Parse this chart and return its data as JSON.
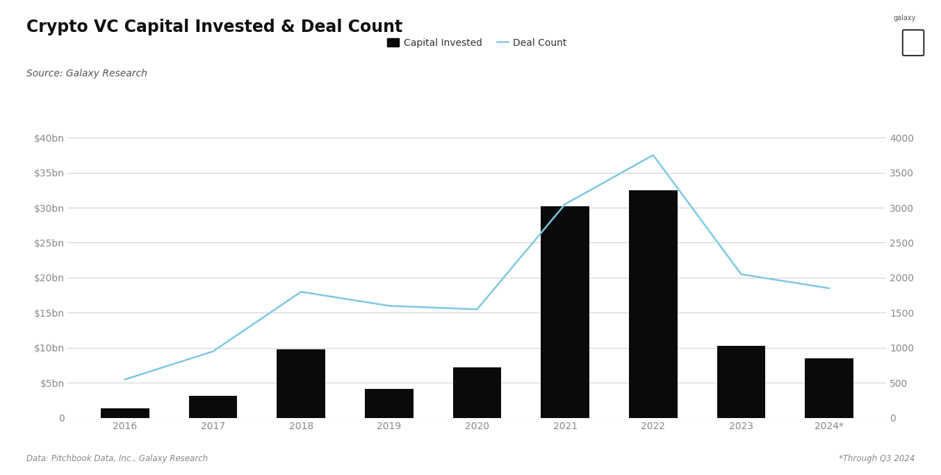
{
  "years": [
    "2016",
    "2017",
    "2018",
    "2019",
    "2020",
    "2021",
    "2022",
    "2023",
    "2024*"
  ],
  "capital_invested_bn": [
    1.4,
    3.2,
    9.8,
    4.2,
    7.2,
    30.2,
    32.5,
    10.3,
    8.5
  ],
  "deal_count": [
    550,
    950,
    1800,
    1600,
    1550,
    3050,
    3750,
    2050,
    1850
  ],
  "bar_color": "#0a0a0a",
  "line_color": "#7ec8e3",
  "background_color": "#ffffff",
  "title": "Crypto VC Capital Invested & Deal Count",
  "subtitle": "Source: Galaxy Research",
  "legend_capital": "Capital Invested",
  "legend_deal": "Deal Count",
  "footnote_left": "Data: Pitchbook Data, Inc., Galaxy Research",
  "footnote_right": "*Through Q3 2024",
  "left_yticks": [
    0,
    5,
    10,
    15,
    20,
    25,
    30,
    35,
    40
  ],
  "left_ylabels": [
    "0",
    "$5bn",
    "$10bn",
    "$15bn",
    "$20bn",
    "$25bn",
    "$30bn",
    "$35bn",
    "$40bn"
  ],
  "right_yticks": [
    0,
    500,
    1000,
    1500,
    2000,
    2500,
    3000,
    3500,
    4000
  ],
  "right_ylabels": [
    "0",
    "500",
    "1000",
    "1500",
    "2000",
    "2500",
    "3000",
    "3500",
    "4000"
  ],
  "ylim_left": [
    0,
    42
  ],
  "ylim_right": [
    0,
    4200
  ],
  "grid_color": "#d5d5d5",
  "tick_color": "#888888",
  "title_fontsize": 17,
  "subtitle_fontsize": 10,
  "axis_label_fontsize": 10,
  "legend_fontsize": 10,
  "footnote_fontsize": 8.5,
  "galaxy_fontsize": 7
}
